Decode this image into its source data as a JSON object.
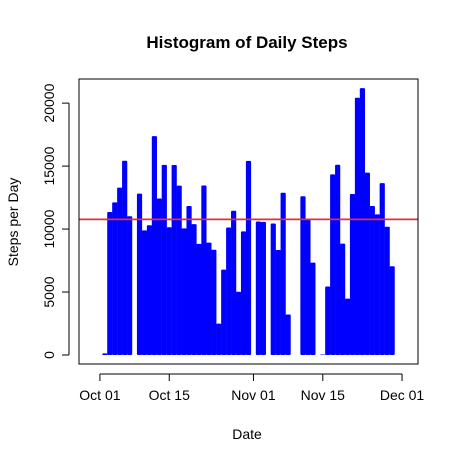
{
  "chart_data": {
    "type": "bar",
    "title": "Histogram of Daily Steps",
    "xlabel": "Date",
    "ylabel": "Steps per Day",
    "x_ticks": [
      "Oct 01",
      "Oct 15",
      "Nov 01",
      "Nov 15",
      "Dec 01"
    ],
    "x_tick_dates": [
      "2012-10-01",
      "2012-10-15",
      "2012-11-01",
      "2012-11-15",
      "2012-12-01"
    ],
    "y_ticks": [
      0,
      5000,
      10000,
      15000,
      20000
    ],
    "xlim": [
      "2012-09-29",
      "2012-12-02"
    ],
    "ylim": [
      0,
      21200
    ],
    "bar_color": "#0000ff",
    "reference_line": {
      "value": 10766,
      "color": "#e0303a"
    },
    "series": [
      {
        "x": [
          "2012-10-02",
          "2012-10-03",
          "2012-10-04",
          "2012-10-05",
          "2012-10-06",
          "2012-10-07",
          "2012-10-09",
          "2012-10-10",
          "2012-10-11",
          "2012-10-12",
          "2012-10-13",
          "2012-10-14",
          "2012-10-15",
          "2012-10-16",
          "2012-10-17",
          "2012-10-18",
          "2012-10-19",
          "2012-10-20",
          "2012-10-21",
          "2012-10-22",
          "2012-10-23",
          "2012-10-24",
          "2012-10-25",
          "2012-10-26",
          "2012-10-27",
          "2012-10-28",
          "2012-10-29",
          "2012-10-30",
          "2012-10-31",
          "2012-11-02",
          "2012-11-03",
          "2012-11-05",
          "2012-11-06",
          "2012-11-07",
          "2012-11-08",
          "2012-11-11",
          "2012-11-12",
          "2012-11-13",
          "2012-11-15",
          "2012-11-16",
          "2012-11-17",
          "2012-11-18",
          "2012-11-19",
          "2012-11-20",
          "2012-11-21",
          "2012-11-22",
          "2012-11-23",
          "2012-11-24",
          "2012-11-25",
          "2012-11-26",
          "2012-11-27",
          "2012-11-28",
          "2012-11-29"
        ],
        "values": [
          126,
          11352,
          12116,
          13294,
          15420,
          11015,
          12811,
          9900,
          10304,
          17382,
          12426,
          15098,
          10139,
          15084,
          13452,
          10056,
          11829,
          10395,
          8821,
          13460,
          8918,
          8355,
          2492,
          6778,
          10119,
          11458,
          5018,
          9819,
          15414,
          10600,
          10571,
          10439,
          8334,
          12883,
          3219,
          12608,
          10765,
          7336,
          41,
          5441,
          14339,
          15110,
          8841,
          4472,
          12787,
          20427,
          21194,
          14478,
          11834,
          11162,
          13646,
          10183,
          7047
        ]
      }
    ]
  }
}
